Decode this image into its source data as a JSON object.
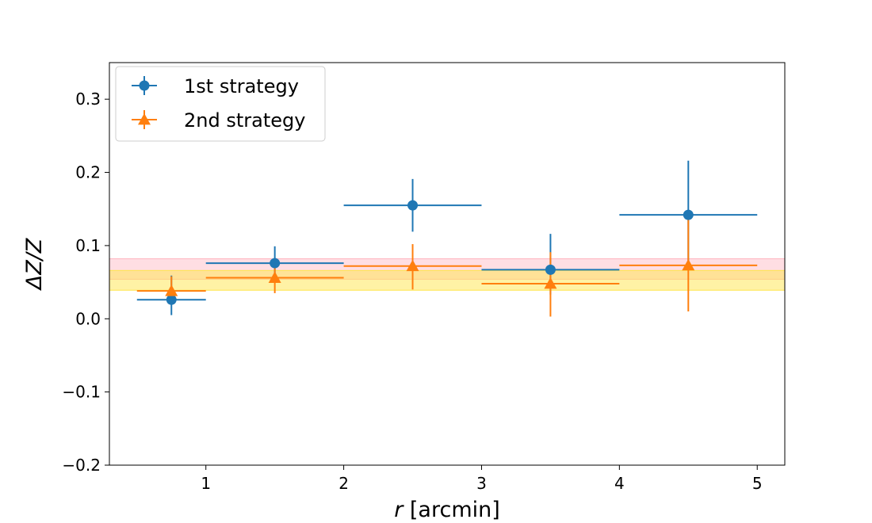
{
  "chart_data": {
    "type": "scatter",
    "title": "",
    "xlabel_var": "r",
    "xlabel_unit": " [arcmin]",
    "ylabel": "ΔZ/Z",
    "xlim": [
      0.3,
      5.2
    ],
    "ylim": [
      -0.2,
      0.35
    ],
    "xticks": [
      1,
      2,
      3,
      4,
      5
    ],
    "xtick_labels": [
      "1",
      "2",
      "3",
      "4",
      "5"
    ],
    "yticks": [
      -0.2,
      -0.1,
      0.0,
      0.1,
      0.2,
      0.3
    ],
    "ytick_labels": [
      "−0.2",
      "−0.1",
      "0.0",
      "0.1",
      "0.2",
      "0.3"
    ],
    "legend_position": "top-left",
    "series": [
      {
        "name": "1st strategy",
        "marker": "circle",
        "color": "#1f77b4",
        "x": [
          0.75,
          1.5,
          2.5,
          3.5,
          4.5
        ],
        "xerr_low": [
          0.25,
          0.5,
          0.5,
          0.5,
          0.5
        ],
        "xerr_high": [
          0.25,
          0.5,
          0.5,
          0.5,
          0.5
        ],
        "y": [
          0.026,
          0.076,
          0.155,
          0.067,
          0.142
        ],
        "yerr_low": [
          0.021,
          0.022,
          0.036,
          0.034,
          0.068
        ],
        "yerr_high": [
          0.033,
          0.023,
          0.036,
          0.049,
          0.074
        ]
      },
      {
        "name": "2nd strategy",
        "marker": "triangle",
        "color": "#ff7f0e",
        "x": [
          0.75,
          1.5,
          2.5,
          3.5,
          4.5
        ],
        "xerr_low": [
          0.25,
          0.5,
          0.5,
          0.5,
          0.5
        ],
        "xerr_high": [
          0.25,
          0.5,
          0.5,
          0.5,
          0.5
        ],
        "y": [
          0.038,
          0.056,
          0.072,
          0.048,
          0.073
        ],
        "yerr_low": [
          0.0,
          0.021,
          0.032,
          0.045,
          0.063
        ],
        "yerr_high": [
          0.02,
          0.016,
          0.03,
          0.043,
          0.067
        ]
      }
    ],
    "bands": [
      {
        "name": "pink-band",
        "y0": 0.054,
        "y1": 0.082,
        "color": "#ffb6c1",
        "alpha": 0.45,
        "center": 0.068
      },
      {
        "name": "yellow-band",
        "y0": 0.039,
        "y1": 0.066,
        "color": "#ffe54c",
        "alpha": 0.5,
        "center": 0.054
      }
    ]
  }
}
